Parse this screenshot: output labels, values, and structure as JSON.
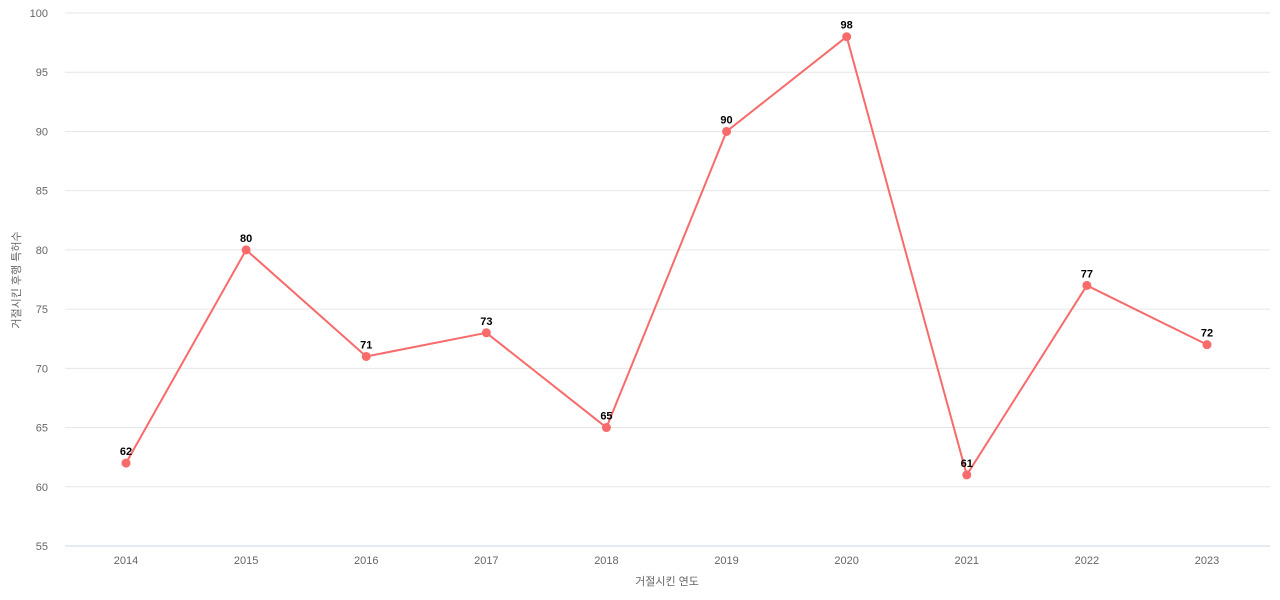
{
  "chart_data": {
    "type": "line",
    "title": "",
    "xlabel": "거절시킨 연도",
    "ylabel": "거절시킨 후행 특허수",
    "categories": [
      "2014",
      "2015",
      "2016",
      "2017",
      "2018",
      "2019",
      "2020",
      "2021",
      "2022",
      "2023"
    ],
    "values": [
      62,
      80,
      71,
      73,
      65,
      90,
      98,
      61,
      77,
      72
    ],
    "ylim": [
      55,
      100
    ],
    "yticks": [
      55,
      60,
      65,
      70,
      75,
      80,
      85,
      90,
      95,
      100
    ],
    "grid": true,
    "legend": false,
    "data_labels": true,
    "colors": {
      "series": "#f76b6b",
      "grid": "#e6e6e6",
      "axis_line": "#ccd6eb",
      "tick_label": "#666666",
      "axis_title": "#666666",
      "data_label": "#000000",
      "background": "#ffffff"
    }
  }
}
